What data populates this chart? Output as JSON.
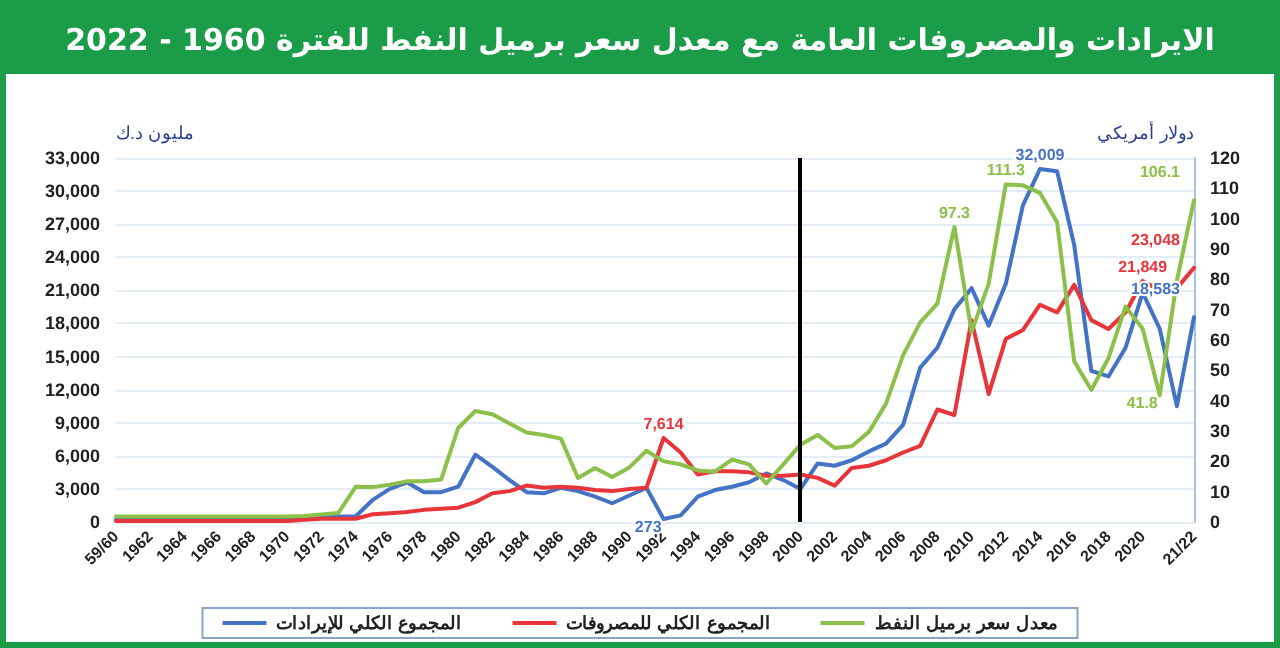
{
  "chart_data": {
    "type": "line",
    "title": "الايرادات والمصروفات العامة مع معدل سعر برميل النفط للفترة 1960 - 2022",
    "ylabel": "مليون د.ك",
    "y2label": "دولار أمريكي",
    "categories": [
      "59/60",
      null,
      "1962",
      null,
      "1964",
      null,
      "1966",
      null,
      "1968",
      null,
      "1970",
      null,
      "1972",
      null,
      "1974",
      null,
      "1976",
      null,
      "1978",
      null,
      "1980",
      null,
      "1982",
      null,
      "1984",
      null,
      "1986",
      null,
      "1988",
      null,
      "1990",
      null,
      "1992",
      null,
      "1994",
      null,
      "1996",
      null,
      "1998",
      null,
      "2000",
      null,
      "2002",
      null,
      "2004",
      null,
      "2006",
      null,
      "2008",
      null,
      "2010",
      null,
      "2012",
      null,
      "2014",
      null,
      "2016",
      null,
      "2018",
      null,
      "2020",
      null,
      null,
      "21/22"
    ],
    "series": [
      {
        "name": "المجموع الكلي للإيرادات",
        "color": "#4472c4",
        "values": [
          200,
          200,
          200,
          200,
          200,
          200,
          200,
          200,
          200,
          200,
          200,
          300,
          400,
          500,
          500,
          2000,
          3000,
          3600,
          2700,
          2700,
          3200,
          6100,
          5000,
          3800,
          2700,
          2600,
          3100,
          2800,
          2300,
          1700,
          2400,
          3100,
          273,
          600,
          2300,
          2900,
          3200,
          3600,
          4400,
          3800,
          3000,
          5300,
          5100,
          5600,
          6400,
          7100,
          8800,
          14000,
          15800,
          19300,
          21200,
          17800,
          21600,
          28700,
          32009,
          31800,
          25100,
          13700,
          13200,
          15800,
          20800,
          17500,
          10500,
          18583
        ],
        "value_labels": [
          null,
          null,
          null,
          null,
          null,
          null,
          null,
          null,
          null,
          null,
          null,
          null,
          null,
          null,
          null,
          null,
          null,
          null,
          null,
          null,
          null,
          null,
          null,
          null,
          null,
          null,
          null,
          null,
          null,
          null,
          null,
          null,
          "273",
          null,
          null,
          null,
          null,
          null,
          null,
          null,
          null,
          null,
          null,
          null,
          null,
          null,
          null,
          null,
          null,
          null,
          null,
          null,
          null,
          null,
          "32,009",
          null,
          null,
          null,
          null,
          null,
          null,
          null,
          null,
          "18,583"
        ]
      },
      {
        "name": "المجموع الكلي للمصروفات",
        "color": "#e8353a",
        "values": [
          100,
          100,
          100,
          100,
          100,
          100,
          100,
          100,
          100,
          100,
          100,
          200,
          300,
          300,
          300,
          700,
          800,
          900,
          1100,
          1200,
          1300,
          1800,
          2600,
          2800,
          3300,
          3100,
          3200,
          3100,
          2900,
          2800,
          3000,
          3100,
          7614,
          6300,
          4300,
          4600,
          4600,
          4500,
          4200,
          4200,
          4300,
          4000,
          3300,
          4900,
          5100,
          5600,
          6300,
          6900,
          10200,
          9700,
          18300,
          11600,
          16600,
          17400,
          19700,
          19000,
          21500,
          18300,
          17500,
          19000,
          21849,
          21000,
          21200,
          23048
        ],
        "value_labels": [
          null,
          null,
          null,
          null,
          null,
          null,
          null,
          null,
          null,
          null,
          null,
          null,
          null,
          null,
          null,
          null,
          null,
          null,
          null,
          null,
          null,
          null,
          null,
          null,
          null,
          null,
          null,
          null,
          null,
          null,
          null,
          null,
          "7,614",
          null,
          null,
          null,
          null,
          null,
          null,
          null,
          null,
          null,
          null,
          null,
          null,
          null,
          null,
          null,
          null,
          null,
          null,
          null,
          null,
          null,
          null,
          null,
          null,
          null,
          null,
          null,
          "21,849",
          null,
          null,
          "23,048"
        ]
      },
      {
        "name": "معدل سعر برميل النفط",
        "color": "#8cc04a",
        "axis": "y2",
        "values": [
          1.8,
          1.8,
          1.8,
          1.8,
          1.8,
          1.8,
          1.8,
          1.8,
          1.8,
          1.8,
          1.8,
          2,
          2.5,
          3,
          11.6,
          11.5,
          12.3,
          13.4,
          13.4,
          14,
          31,
          36.6,
          35.5,
          32.5,
          29.5,
          28.7,
          27.5,
          14.5,
          17.8,
          14.8,
          18,
          23.5,
          20,
          19,
          17,
          16.6,
          20.6,
          19,
          12.7,
          19,
          25.5,
          28.7,
          24.4,
          25,
          29.7,
          39,
          55,
          65.8,
          72,
          97.3,
          62.7,
          78.6,
          111.3,
          111,
          108.5,
          98.8,
          53,
          43.5,
          54,
          71,
          63.7,
          41.8,
          79.6,
          106.1
        ],
        "value_labels": [
          null,
          null,
          null,
          null,
          null,
          null,
          null,
          null,
          null,
          null,
          null,
          null,
          null,
          null,
          null,
          null,
          null,
          null,
          null,
          null,
          null,
          null,
          null,
          null,
          null,
          null,
          null,
          null,
          null,
          null,
          null,
          null,
          null,
          null,
          null,
          null,
          null,
          null,
          null,
          null,
          null,
          null,
          null,
          null,
          null,
          null,
          null,
          null,
          null,
          "97.3",
          null,
          null,
          "111.3",
          null,
          null,
          null,
          null,
          null,
          null,
          null,
          null,
          "41.8",
          null,
          "106.1"
        ]
      }
    ],
    "ylim": [
      0,
      33000
    ],
    "yticks": [
      0,
      {
        "value": 3000,
        "label": "3,000"
      },
      {
        "value": 6000,
        "label": "6,000"
      },
      {
        "value": 9000,
        "label": "9,000"
      },
      {
        "value": 12000,
        "label": "12,000"
      },
      {
        "value": 15000,
        "label": "15,000"
      },
      {
        "value": 18000,
        "label": "18,000"
      },
      {
        "value": 21000,
        "label": "21,000"
      },
      {
        "value": 24000,
        "label": "24,000"
      },
      {
        "value": 27000,
        "label": "27,000"
      },
      {
        "value": 30000,
        "label": "30,000"
      },
      {
        "value": 33000,
        "label": "33,000"
      }
    ],
    "y2lim": [
      0,
      120
    ],
    "y2ticks": [
      0,
      10,
      20,
      30,
      40,
      50,
      60,
      70,
      80,
      90,
      100,
      110,
      120
    ],
    "ref_lines": [
      {
        "axis": "x",
        "value": "2000",
        "color": "#000000"
      }
    ],
    "grid": "y",
    "legend": "bottom",
    "marker": "none",
    "line_style": "solid"
  }
}
